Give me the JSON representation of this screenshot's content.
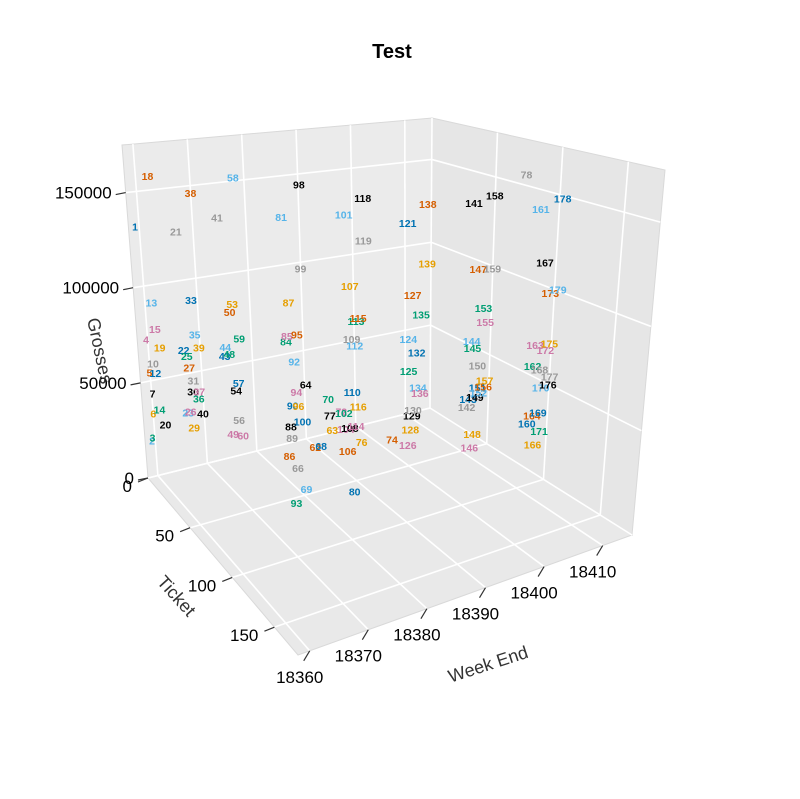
{
  "chart_data": {
    "type": "scatter",
    "subtype": "3d-text-scatter",
    "title": "Test",
    "xlabel": "Week End",
    "ylabel": "Ticket",
    "zlabel": "Grosses",
    "x_ticks": [
      "18360",
      "18370",
      "18380",
      "18390",
      "18400",
      "18410"
    ],
    "y_ticks": [
      "0",
      "50",
      "100",
      "150"
    ],
    "z_ticks": [
      "0",
      "50000",
      "100000",
      "150000"
    ],
    "xlim": [
      18358,
      18415
    ],
    "ylim": [
      0,
      178
    ],
    "zlim": [
      0,
      175000
    ],
    "grid": true,
    "legend": "none",
    "colors": [
      "#0072B2",
      "#56B4E9",
      "#009E73",
      "#CC79A7",
      "#D55E00",
      "#E69F00",
      "#000000",
      "#999999"
    ],
    "points": [
      {
        "label": "1",
        "week": 18359,
        "ticket": 1,
        "gross": 130000
      },
      {
        "label": "2",
        "week": 18359,
        "ticket": 2,
        "gross": 18000
      },
      {
        "label": "3",
        "week": 18359,
        "ticket": 3,
        "gross": 20000
      },
      {
        "label": "4",
        "week": 18359,
        "ticket": 4,
        "gross": 72000
      },
      {
        "label": "5",
        "week": 18359,
        "ticket": 5,
        "gross": 55000
      },
      {
        "label": "6",
        "week": 18359,
        "ticket": 6,
        "gross": 34000
      },
      {
        "label": "7",
        "week": 18359,
        "ticket": 7,
        "gross": 45000
      },
      {
        "label": "10",
        "week": 18359,
        "ticket": 10,
        "gross": 62000
      },
      {
        "label": "12",
        "week": 18359,
        "ticket": 12,
        "gross": 58000
      },
      {
        "label": "13",
        "week": 18359,
        "ticket": 13,
        "gross": 95000
      },
      {
        "label": "14",
        "week": 18359,
        "ticket": 14,
        "gross": 40000
      },
      {
        "label": "15",
        "week": 18359,
        "ticket": 15,
        "gross": 82000
      },
      {
        "label": "18",
        "week": 18359,
        "ticket": 18,
        "gross": 162000
      },
      {
        "label": "19",
        "week": 18359,
        "ticket": 19,
        "gross": 74000
      },
      {
        "label": "20",
        "week": 18359,
        "ticket": 20,
        "gross": 35000
      },
      {
        "label": "21",
        "week": 18363,
        "ticket": 21,
        "gross": 133000
      },
      {
        "label": "22",
        "week": 18363,
        "ticket": 22,
        "gross": 72000
      },
      {
        "label": "23",
        "week": 18363,
        "ticket": 23,
        "gross": 40000
      },
      {
        "label": "25",
        "week": 18363,
        "ticket": 25,
        "gross": 70000
      },
      {
        "label": "26",
        "week": 18363,
        "ticket": 26,
        "gross": 42000
      },
      {
        "label": "27",
        "week": 18363,
        "ticket": 27,
        "gross": 65000
      },
      {
        "label": "29",
        "week": 18363,
        "ticket": 29,
        "gross": 35000
      },
      {
        "label": "30",
        "week": 18363,
        "ticket": 30,
        "gross": 54000
      },
      {
        "label": "31",
        "week": 18363,
        "ticket": 31,
        "gross": 60000
      },
      {
        "label": "33",
        "week": 18363,
        "ticket": 33,
        "gross": 102000
      },
      {
        "label": "35",
        "week": 18363,
        "ticket": 35,
        "gross": 85000
      },
      {
        "label": "36",
        "week": 18363,
        "ticket": 36,
        "gross": 53000
      },
      {
        "label": "37",
        "week": 18363,
        "ticket": 37,
        "gross": 57000
      },
      {
        "label": "38",
        "week": 18363,
        "ticket": 38,
        "gross": 158000
      },
      {
        "label": "39",
        "week": 18363,
        "ticket": 39,
        "gross": 80000
      },
      {
        "label": "40",
        "week": 18363,
        "ticket": 40,
        "gross": 47000
      },
      {
        "label": "41",
        "week": 18367,
        "ticket": 41,
        "gross": 145000
      },
      {
        "label": "43",
        "week": 18367,
        "ticket": 43,
        "gross": 75000
      },
      {
        "label": "44",
        "week": 18367,
        "ticket": 44,
        "gross": 80000
      },
      {
        "label": "48",
        "week": 18367,
        "ticket": 48,
        "gross": 78000
      },
      {
        "label": "49",
        "week": 18367,
        "ticket": 49,
        "gross": 38000
      },
      {
        "label": "50",
        "week": 18367,
        "ticket": 50,
        "gross": 100000
      },
      {
        "label": "53",
        "week": 18367,
        "ticket": 53,
        "gross": 105000
      },
      {
        "label": "54",
        "week": 18367,
        "ticket": 54,
        "gross": 62000
      },
      {
        "label": "56",
        "week": 18367,
        "ticket": 56,
        "gross": 48000
      },
      {
        "label": "57",
        "week": 18367,
        "ticket": 57,
        "gross": 67000
      },
      {
        "label": "58",
        "week": 18367,
        "ticket": 58,
        "gross": 170000
      },
      {
        "label": "59",
        "week": 18367,
        "ticket": 59,
        "gross": 90000
      },
      {
        "label": "60",
        "week": 18367,
        "ticket": 60,
        "gross": 42000
      },
      {
        "label": "62",
        "week": 18380,
        "ticket": 62,
        "gross": 28000
      },
      {
        "label": "63",
        "week": 18383,
        "ticket": 63,
        "gross": 35000
      },
      {
        "label": "64",
        "week": 18378,
        "ticket": 64,
        "gross": 62000
      },
      {
        "label": "66",
        "week": 18376,
        "ticket": 66,
        "gross": 22000
      },
      {
        "label": "68",
        "week": 18380,
        "ticket": 68,
        "gross": 31000
      },
      {
        "label": "69",
        "week": 18377,
        "ticket": 69,
        "gross": 12000
      },
      {
        "label": "70",
        "week": 18381,
        "ticket": 70,
        "gross": 55000
      },
      {
        "label": "72",
        "week": 18383,
        "ticket": 72,
        "gross": 48000
      },
      {
        "label": "74",
        "week": 18392,
        "ticket": 74,
        "gross": 28000
      },
      {
        "label": "76",
        "week": 18386,
        "ticket": 76,
        "gross": 32000
      },
      {
        "label": "77",
        "week": 18380,
        "ticket": 77,
        "gross": 50000
      },
      {
        "label": "78",
        "week": 18414,
        "ticket": 78,
        "gross": 155000
      },
      {
        "label": "80",
        "week": 18384,
        "ticket": 80,
        "gross": 10000
      },
      {
        "label": "81",
        "week": 18371,
        "ticket": 81,
        "gross": 155000
      },
      {
        "label": "84",
        "week": 18371,
        "ticket": 84,
        "gross": 95000
      },
      {
        "label": "85",
        "week": 18371,
        "ticket": 85,
        "gross": 98000
      },
      {
        "label": "86",
        "week": 18371,
        "ticket": 86,
        "gross": 40000
      },
      {
        "label": "87",
        "week": 18371,
        "ticket": 87,
        "gross": 115000
      },
      {
        "label": "88",
        "week": 18371,
        "ticket": 88,
        "gross": 55000
      },
      {
        "label": "89",
        "week": 18371,
        "ticket": 89,
        "gross": 50000
      },
      {
        "label": "90",
        "week": 18371,
        "ticket": 90,
        "gross": 66000
      },
      {
        "label": "92",
        "week": 18371,
        "ticket": 92,
        "gross": 88000
      },
      {
        "label": "93",
        "week": 18371,
        "ticket": 93,
        "gross": 20000
      },
      {
        "label": "94",
        "week": 18371,
        "ticket": 94,
        "gross": 74000
      },
      {
        "label": "95",
        "week": 18371,
        "ticket": 95,
        "gross": 102000
      },
      {
        "label": "96",
        "week": 18371,
        "ticket": 96,
        "gross": 68000
      },
      {
        "label": "98",
        "week": 18371,
        "ticket": 98,
        "gross": 175000
      },
      {
        "label": "99",
        "week": 18371,
        "ticket": 99,
        "gross": 135000
      },
      {
        "label": "100",
        "week": 18371,
        "ticket": 100,
        "gross": 62000
      },
      {
        "label": "101",
        "week": 18378,
        "ticket": 101,
        "gross": 158000
      },
      {
        "label": "102",
        "week": 18378,
        "ticket": 102,
        "gross": 62000
      },
      {
        "label": "104",
        "week": 18378,
        "ticket": 104,
        "gross": 55000
      },
      {
        "label": "106",
        "week": 18378,
        "ticket": 106,
        "gross": 45000
      },
      {
        "label": "107",
        "week": 18378,
        "ticket": 107,
        "gross": 125000
      },
      {
        "label": "108",
        "week": 18378,
        "ticket": 108,
        "gross": 57000
      },
      {
        "label": "109",
        "week": 18378,
        "ticket": 109,
        "gross": 100000
      },
      {
        "label": "110",
        "week": 18378,
        "ticket": 110,
        "gross": 75000
      },
      {
        "label": "112",
        "week": 18378,
        "ticket": 112,
        "gross": 98000
      },
      {
        "label": "113",
        "week": 18378,
        "ticket": 113,
        "gross": 110000
      },
      {
        "label": "114",
        "week": 18378,
        "ticket": 114,
        "gross": 60000
      },
      {
        "label": "115",
        "week": 18378,
        "ticket": 115,
        "gross": 112000
      },
      {
        "label": "116",
        "week": 18378,
        "ticket": 116,
        "gross": 70000
      },
      {
        "label": "118",
        "week": 18378,
        "ticket": 118,
        "gross": 170000
      },
      {
        "label": "119",
        "week": 18378,
        "ticket": 119,
        "gross": 150000
      },
      {
        "label": "121",
        "week": 18385,
        "ticket": 121,
        "gross": 155000
      },
      {
        "label": "124",
        "week": 18385,
        "ticket": 124,
        "gross": 100000
      },
      {
        "label": "125",
        "week": 18385,
        "ticket": 125,
        "gross": 85000
      },
      {
        "label": "126",
        "week": 18385,
        "ticket": 126,
        "gross": 50000
      },
      {
        "label": "127",
        "week": 18385,
        "ticket": 127,
        "gross": 122000
      },
      {
        "label": "128",
        "week": 18385,
        "ticket": 128,
        "gross": 58000
      },
      {
        "label": "129",
        "week": 18385,
        "ticket": 129,
        "gross": 65000
      },
      {
        "label": "130",
        "week": 18385,
        "ticket": 130,
        "gross": 68000
      },
      {
        "label": "132",
        "week": 18385,
        "ticket": 132,
        "gross": 96000
      },
      {
        "label": "134",
        "week": 18385,
        "ticket": 134,
        "gross": 80000
      },
      {
        "label": "135",
        "week": 18385,
        "ticket": 135,
        "gross": 115000
      },
      {
        "label": "136",
        "week": 18385,
        "ticket": 136,
        "gross": 78000
      },
      {
        "label": "138",
        "week": 18385,
        "ticket": 138,
        "gross": 168000
      },
      {
        "label": "139",
        "week": 18385,
        "ticket": 139,
        "gross": 140000
      },
      {
        "label": "141",
        "week": 18392,
        "ticket": 141,
        "gross": 165000
      },
      {
        "label": "142",
        "week": 18392,
        "ticket": 142,
        "gross": 68000
      },
      {
        "label": "143",
        "week": 18392,
        "ticket": 143,
        "gross": 72000
      },
      {
        "label": "144",
        "week": 18392,
        "ticket": 144,
        "gross": 100000
      },
      {
        "label": "145",
        "week": 18392,
        "ticket": 145,
        "gross": 97000
      },
      {
        "label": "146",
        "week": 18392,
        "ticket": 146,
        "gross": 50000
      },
      {
        "label": "147",
        "week": 18392,
        "ticket": 147,
        "gross": 135000
      },
      {
        "label": "148",
        "week": 18392,
        "ticket": 148,
        "gross": 57000
      },
      {
        "label": "149",
        "week": 18392,
        "ticket": 149,
        "gross": 75000
      },
      {
        "label": "150",
        "week": 18392,
        "ticket": 150,
        "gross": 90000
      },
      {
        "label": "151",
        "week": 18392,
        "ticket": 151,
        "gross": 80000
      },
      {
        "label": "152",
        "week": 18392,
        "ticket": 152,
        "gross": 78000
      },
      {
        "label": "153",
        "week": 18392,
        "ticket": 153,
        "gross": 118000
      },
      {
        "label": "155",
        "week": 18392,
        "ticket": 155,
        "gross": 112000
      },
      {
        "label": "156",
        "week": 18392,
        "ticket": 156,
        "gross": 82000
      },
      {
        "label": "157",
        "week": 18392,
        "ticket": 157,
        "gross": 85000
      },
      {
        "label": "158",
        "week": 18392,
        "ticket": 158,
        "gross": 172000
      },
      {
        "label": "159",
        "week": 18392,
        "ticket": 159,
        "gross": 138000
      },
      {
        "label": "160",
        "week": 18399,
        "ticket": 160,
        "gross": 60000
      },
      {
        "label": "161",
        "week": 18399,
        "ticket": 161,
        "gross": 162000
      },
      {
        "label": "162",
        "week": 18399,
        "ticket": 162,
        "gross": 88000
      },
      {
        "label": "163",
        "week": 18399,
        "ticket": 163,
        "gross": 98000
      },
      {
        "label": "164",
        "week": 18399,
        "ticket": 164,
        "gross": 65000
      },
      {
        "label": "166",
        "week": 18399,
        "ticket": 166,
        "gross": 52000
      },
      {
        "label": "167",
        "week": 18399,
        "ticket": 167,
        "gross": 138000
      },
      {
        "label": "168",
        "week": 18399,
        "ticket": 168,
        "gross": 88000
      },
      {
        "label": "169",
        "week": 18399,
        "ticket": 169,
        "gross": 68000
      },
      {
        "label": "170",
        "week": 18399,
        "ticket": 170,
        "gross": 80000
      },
      {
        "label": "171",
        "week": 18399,
        "ticket": 171,
        "gross": 60000
      },
      {
        "label": "172",
        "week": 18399,
        "ticket": 172,
        "gross": 98000
      },
      {
        "label": "173",
        "week": 18399,
        "ticket": 173,
        "gross": 125000
      },
      {
        "label": "175",
        "week": 18399,
        "ticket": 175,
        "gross": 102000
      },
      {
        "label": "176",
        "week": 18399,
        "ticket": 176,
        "gross": 83000
      },
      {
        "label": "177",
        "week": 18399,
        "ticket": 177,
        "gross": 87000
      },
      {
        "label": "178",
        "week": 18399,
        "ticket": 178,
        "gross": 170000
      },
      {
        "label": "179",
        "week": 18399,
        "ticket": 179,
        "gross": 128000
      }
    ]
  }
}
